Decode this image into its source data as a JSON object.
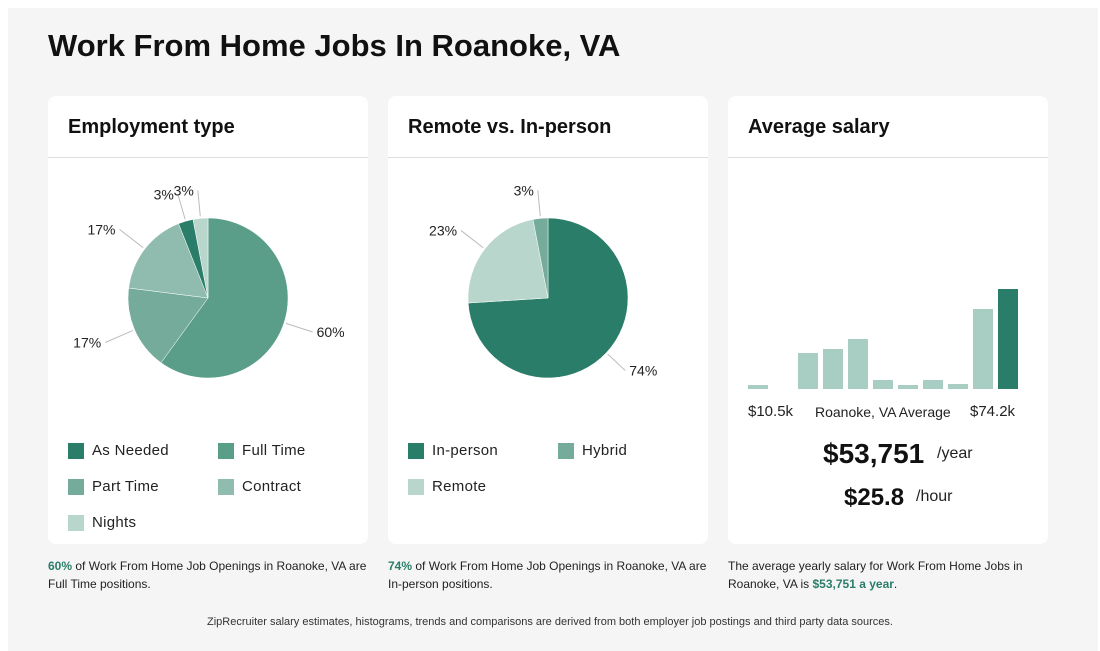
{
  "page": {
    "title": "Work From Home Jobs In Roanoke, VA",
    "footer": "ZipRecruiter salary estimates, histograms, trends and comparisons are derived from both employer job postings and third party data sources."
  },
  "employment": {
    "title": "Employment type",
    "caption_highlight": "60%",
    "caption_text": " of Work From Home Job Openings in Roanoke, VA are Full Time positions."
  },
  "remote": {
    "title": "Remote vs. In-person",
    "caption_highlight": "74%",
    "caption_text": " of Work From Home Job Openings in Roanoke, VA are In-person positions."
  },
  "salary": {
    "title": "Average salary",
    "min_label": "$10.5k",
    "avg_label": "Roanoke, VA Average",
    "max_label": "$74.2k",
    "yearly": "$53,751",
    "yearly_unit": "/year",
    "hourly": "$25.8",
    "hourly_unit": "/hour",
    "caption_text": "The average yearly salary for Work From Home Jobs in Roanoke, VA is ",
    "caption_highlight": "$53,751 a year",
    "caption_end": "."
  },
  "chart_data": [
    {
      "type": "pie",
      "title": "Employment type",
      "labels": [
        "As Needed",
        "Full Time",
        "Part Time",
        "Contract",
        "Nights"
      ],
      "values": [
        3,
        60,
        17,
        17,
        3
      ],
      "value_labels": [
        "3%",
        "60%",
        "17%",
        "17%",
        "3%"
      ],
      "colors": [
        "#2a7d68",
        "#5a9e8a",
        "#74ab9b",
        "#8fbcae",
        "#b9d6cd"
      ],
      "legend_placement": "bottom"
    },
    {
      "type": "pie",
      "title": "Remote vs. In-person",
      "labels": [
        "In-person",
        "Hybrid",
        "Remote"
      ],
      "values": [
        74,
        3,
        23
      ],
      "value_labels": [
        "74%",
        "3%",
        "23%"
      ],
      "colors": [
        "#2a7d68",
        "#74ab9b",
        "#b9d6cd"
      ],
      "legend_placement": "bottom"
    },
    {
      "type": "bar",
      "title": "Average salary",
      "description": "salary distribution histogram; last bar highlighted",
      "values": [
        4,
        0,
        36,
        40,
        50,
        9,
        4,
        9,
        5,
        80,
        100
      ],
      "colors": {
        "normal": "#a8cdc2",
        "highlight": "#2a7d68"
      },
      "highlight_index": 10,
      "x_range_labels": [
        "$10.5k",
        "$74.2k"
      ]
    }
  ]
}
